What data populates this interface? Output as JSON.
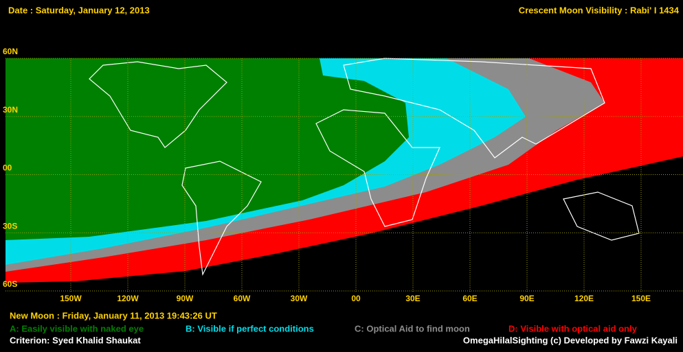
{
  "header": {
    "date": "Date : Saturday, January 12, 2013",
    "title": "Crescent Moon Visibility : Rabi' I  1434"
  },
  "map": {
    "latitude_labels": [
      "60N",
      "30N",
      "00",
      "30S",
      "60S"
    ],
    "longitude_labels": [
      "150W",
      "120W",
      "90W",
      "60W",
      "30W",
      "00",
      "30E",
      "60E",
      "90E",
      "120E",
      "150E"
    ]
  },
  "footer": {
    "new_moon": "New Moon : Friday, January 11, 2013  19:43:26  UT",
    "legend": [
      {
        "label": "A: Easily visible with naked eye",
        "color": "#008000"
      },
      {
        "label": "B: Visible if perfect conditions",
        "color": "#00dde8"
      },
      {
        "label": "C: Optical Aid to find moon",
        "color": "#8c8c8c"
      },
      {
        "label": "D: Visible with optical aid only",
        "color": "#ff0000"
      }
    ],
    "criterion": "Criterion: Syed Khalid Shaukat",
    "credit": "OmegaHilalSighting  (c) Developed by Fawzi Kayali"
  }
}
